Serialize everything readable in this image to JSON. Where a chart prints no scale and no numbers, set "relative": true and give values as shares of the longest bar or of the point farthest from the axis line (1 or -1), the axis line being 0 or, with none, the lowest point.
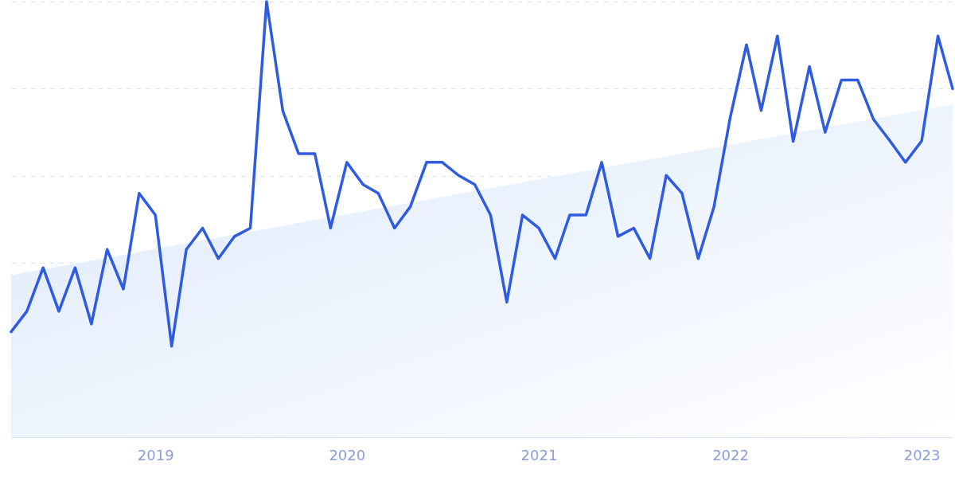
{
  "chart_data": {
    "type": "line",
    "relative": true,
    "grid": "y",
    "line_style": "solid",
    "marker": "none",
    "xlim": [
      "2018-04",
      "2023-03"
    ],
    "xticks": [
      "2019",
      "2020",
      "2021",
      "2022",
      "2023"
    ],
    "x": [
      "2018-04",
      "2018-05",
      "2018-06",
      "2018-07",
      "2018-08",
      "2018-09",
      "2018-10",
      "2018-11",
      "2018-12",
      "2019-01",
      "2019-02",
      "2019-03",
      "2019-04",
      "2019-05",
      "2019-06",
      "2019-07",
      "2019-08",
      "2019-09",
      "2019-10",
      "2019-11",
      "2019-12",
      "2020-01",
      "2020-02",
      "2020-03",
      "2020-04",
      "2020-05",
      "2020-06",
      "2020-07",
      "2020-08",
      "2020-09",
      "2020-10",
      "2020-11",
      "2020-12",
      "2021-01",
      "2021-02",
      "2021-03",
      "2021-04",
      "2021-05",
      "2021-06",
      "2021-07",
      "2021-08",
      "2021-09",
      "2021-10",
      "2021-11",
      "2021-12",
      "2022-01",
      "2022-02",
      "2022-03",
      "2022-04",
      "2022-05",
      "2022-06",
      "2022-07",
      "2022-08",
      "2022-09",
      "2022-10",
      "2022-11",
      "2022-12",
      "2023-01",
      "2023-02",
      "2023-03"
    ],
    "series": [
      {
        "type": "area",
        "color": "#dde9fb",
        "x": [
          "2018-04",
          "2023-03"
        ],
        "values": [
          0.372,
          0.764
        ]
      },
      {
        "color": "#2f5be0",
        "values": [
          0.242,
          0.289,
          0.389,
          0.289,
          0.389,
          0.26,
          0.431,
          0.34,
          0.56,
          0.51,
          0.209,
          0.431,
          0.48,
          0.41,
          0.461,
          0.48,
          1.0,
          0.749,
          0.651,
          0.651,
          0.48,
          0.631,
          0.58,
          0.56,
          0.48,
          0.529,
          0.631,
          0.631,
          0.601,
          0.58,
          0.51,
          0.31,
          0.51,
          0.48,
          0.41,
          0.51,
          0.51,
          0.631,
          0.461,
          0.48,
          0.41,
          0.601,
          0.56,
          0.41,
          0.529,
          0.734,
          0.901,
          0.75,
          0.921,
          0.679,
          0.851,
          0.7,
          0.82,
          0.82,
          0.73,
          0.681,
          0.631,
          0.68,
          0.921,
          0.8
        ]
      }
    ]
  }
}
